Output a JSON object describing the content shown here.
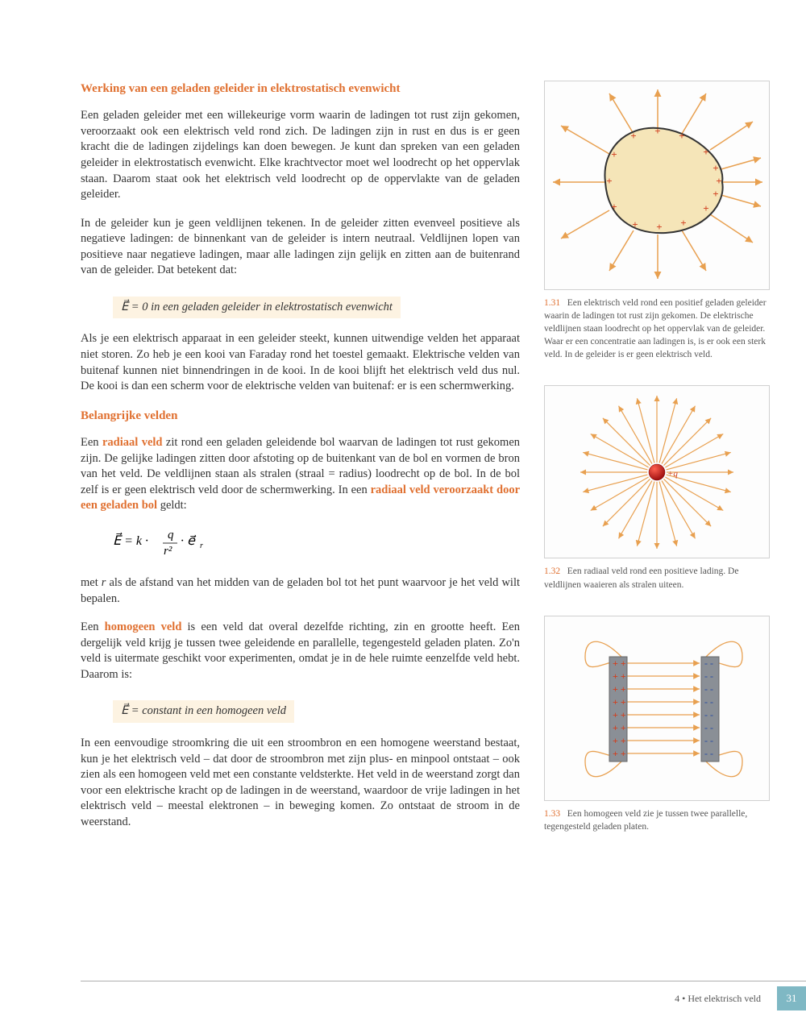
{
  "section1": {
    "heading": "Werking van een geladen geleider in elektrostatisch evenwicht",
    "p1": "Een geladen geleider met een willekeurige vorm waarin de ladingen tot rust zijn gekomen, veroorzaakt ook een elektrisch veld rond zich. De ladingen zijn in rust en dus is er geen kracht die de ladingen zijdelings kan doen bewegen. Je kunt dan spreken van een geladen geleider in elektrostatisch evenwicht. Elke krachtvector moet wel loodrecht op het oppervlak staan. Daarom staat ook het elektrisch veld loodrecht op de oppervlakte van de geladen geleider.",
    "p2": "In de geleider kun je geen veldlijnen tekenen. In de geleider zitten evenveel positieve als negatieve ladingen: de binnenkant van de geleider is intern neutraal. Veldlijnen lopen van positieve naar negatieve ladingen, maar alle ladingen zijn gelijk en zitten aan de buitenrand van de geleider. Dat betekent dat:",
    "formula1": "E⃗ = 0 in een geladen geleider in elektrostatisch evenwicht",
    "p3": "Als je een elektrisch apparaat in een geleider steekt, kunnen uitwendige velden het apparaat niet storen. Zo heb je een kooi van Faraday rond het toestel gemaakt. Elektrische velden van buitenaf kunnen niet binnendringen in de kooi. In de kooi blijft het elektrisch veld dus nul. De kooi is dan een scherm voor de elektrische velden van buitenaf: er is een schermwerking."
  },
  "section2": {
    "heading": "Belangrijke velden",
    "p1_a": "Een ",
    "p1_b": "radiaal veld",
    "p1_c": " zit rond een geladen geleidende bol waarvan de ladingen tot rust gekomen zijn. De gelijke ladingen zitten door afstoting op de buitenkant van de bol en vormen de bron van het veld. De veldlijnen staan als stralen (straal = radius) loodrecht op de bol. In de bol zelf is er geen elektrisch veld door de schermwerking. In een ",
    "p1_d": "radiaal veld veroorzaakt door een geladen bol",
    "p1_e": " geldt:",
    "formula2_tex": "E⃗ = k · q/r² · e⃗ᵣ",
    "p2": "met r als de afstand van het midden van de geladen bol tot het punt waarvoor je het veld wilt bepalen.",
    "p3_a": "Een ",
    "p3_b": "homogeen veld",
    "p3_c": " is een veld dat overal dezelfde richting, zin en grootte heeft. Een dergelijk veld krijg je tussen twee geleidende en parallelle, tegengesteld geladen platen. Zo'n veld is uitermate geschikt voor experimenten, omdat je in de hele ruimte eenzelfde veld hebt. Daarom is:",
    "formula3": "E⃗ = constant in een homogeen veld",
    "p4": "In een eenvoudige stroomkring die uit een stroombron en een homogene weerstand bestaat, kun je het elektrisch veld – dat door de stroombron met zijn plus- en minpool ontstaat – ook zien als een homogeen veld met een constante veldsterkte. Het veld in de weerstand zorgt dan voor een elektrische kracht op de ladingen in de weerstand, waardoor de vrije ladingen in het elektrisch veld – meestal elektronen – in beweging komen. Zo ontstaat de stroom in de weerstand."
  },
  "figures": {
    "f1": {
      "num": "1.31",
      "caption": "Een elektrisch veld rond een positief geladen geleider waarin de ladingen tot rust zijn gekomen. De elektrische veldlijnen staan loodrecht op het oppervlak van de geleider. Waar er een concentratie aan ladingen is, is er ook een sterk veld. In de geleider is er geen elektrisch veld."
    },
    "f2": {
      "num": "1.32",
      "caption": "Een radiaal veld rond een positieve lading. De veldlijnen waaieren als stralen uiteen.",
      "label": "+q"
    },
    "f3": {
      "num": "1.33",
      "caption": "Een homogeen veld zie je tussen twee parallelle, tegengesteld geladen platen."
    }
  },
  "footer": {
    "chapter": "4 • Het elektrisch veld",
    "page": "31"
  },
  "colors": {
    "accent": "#e07030",
    "field_line": "#e8a050",
    "field_fill": "#f5e5b8",
    "charge_red": "#c73030",
    "plate": "#8a8f96",
    "plus": "#d04020",
    "minus": "#3050a0",
    "border": "#d0d0d0",
    "caption": "#555555"
  }
}
